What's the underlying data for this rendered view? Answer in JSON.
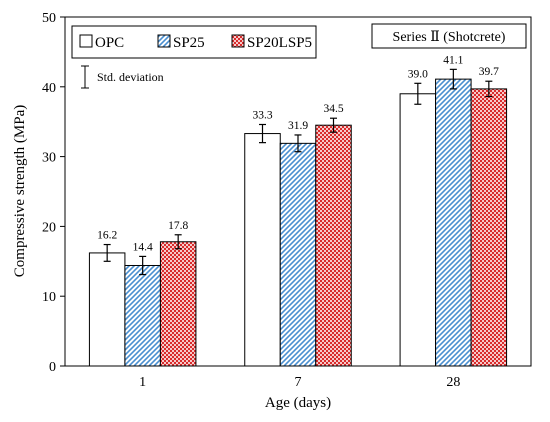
{
  "chart_data": {
    "type": "bar",
    "categories": [
      "1",
      "7",
      "28"
    ],
    "series": [
      {
        "name": "OPC",
        "values": [
          16.2,
          33.3,
          39.0
        ],
        "std": [
          1.2,
          1.3,
          1.5
        ],
        "value_labels": [
          "16.2",
          "33.3",
          "39.0"
        ],
        "fill": "#ffffff",
        "pattern": "none"
      },
      {
        "name": "SP25",
        "values": [
          14.4,
          31.9,
          41.1
        ],
        "std": [
          1.3,
          1.2,
          1.4
        ],
        "value_labels": [
          "14.4",
          "31.9",
          "41.1"
        ],
        "fill": "#5b9bd5",
        "pattern": "diagonal-stripes"
      },
      {
        "name": "SP20LSP5",
        "values": [
          17.8,
          34.5,
          39.7
        ],
        "std": [
          1.0,
          1.0,
          1.1
        ],
        "value_labels": [
          "17.8",
          "34.5",
          "39.7"
        ],
        "fill": "#e03c3c",
        "pattern": "checker"
      }
    ],
    "ylim": [
      0,
      50
    ],
    "yticks": [
      0,
      10,
      20,
      30,
      40,
      50
    ],
    "xlabel": "Age (days)",
    "ylabel": "Compressive strength (MPa)",
    "legend_position": "top-left",
    "legend_note": "Std. deviation",
    "annotation": "Series Ⅱ (Shotcrete)",
    "grid": false
  }
}
